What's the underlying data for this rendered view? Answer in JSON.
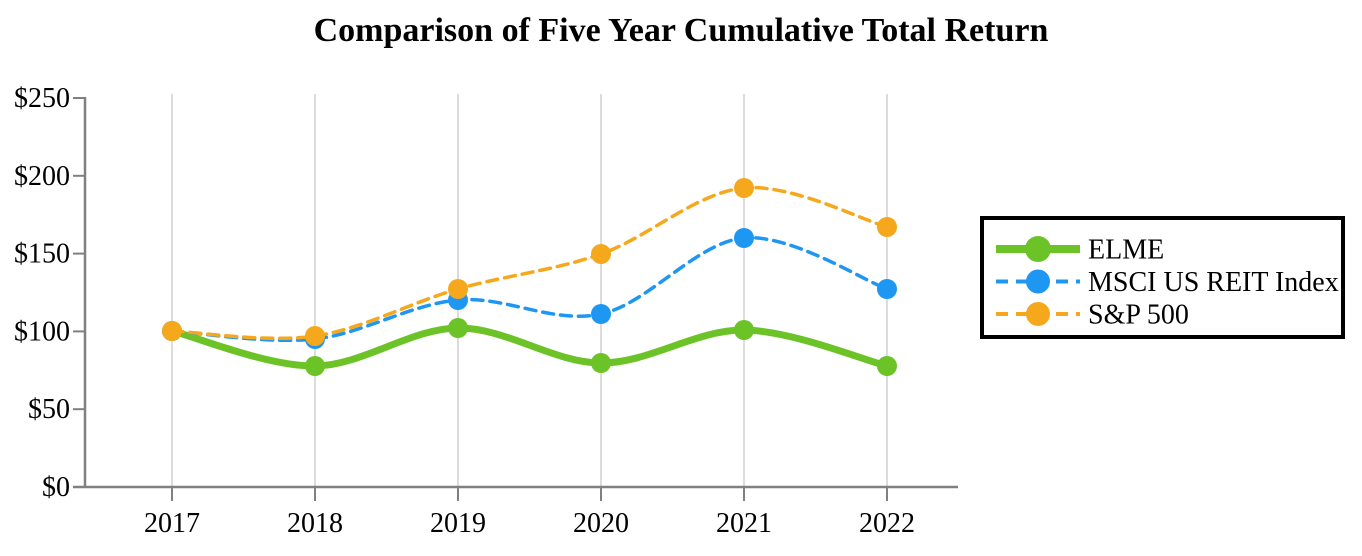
{
  "title": "Comparison of Five Year Cumulative Total Return",
  "chart_data": {
    "type": "line",
    "x": [
      "2017",
      "2018",
      "2019",
      "2020",
      "2021",
      "2022"
    ],
    "series": [
      {
        "name": "ELME",
        "values": [
          100,
          78,
          102,
          80,
          101,
          78
        ],
        "color": "#6cc328",
        "style": "solid"
      },
      {
        "name": "MSCI US REIT Index",
        "values": [
          100,
          95,
          120,
          111,
          160,
          127
        ],
        "color": "#1e97f2",
        "style": "dashed"
      },
      {
        "name": "S&P 500",
        "values": [
          100,
          97,
          127,
          150,
          192,
          167
        ],
        "color": "#f6a81c",
        "style": "dashed"
      }
    ],
    "y_ticks": [
      0,
      50,
      100,
      150,
      200,
      250
    ],
    "y_tick_labels": [
      "$0",
      "$50",
      "$100",
      "$150",
      "$200",
      "$250"
    ],
    "ylim": [
      0,
      250
    ],
    "grid": "vertical",
    "legend_position": "right",
    "colors": {
      "gridline": "#dcdcdc",
      "axis": "#808080",
      "text": "#000000",
      "legend_border": "#000000",
      "background": "#ffffff"
    }
  }
}
